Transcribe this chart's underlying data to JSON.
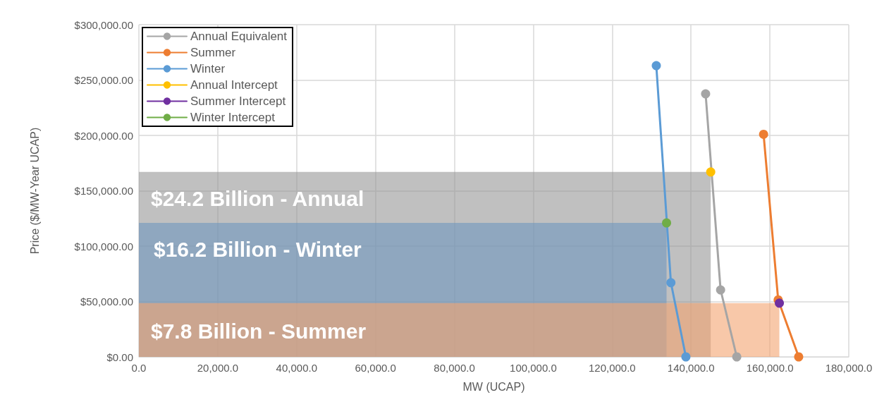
{
  "chart_data": {
    "type": "line",
    "xlabel": "MW (UCAP)",
    "ylabel": "Price ($/MW-Year UCAP)",
    "xlim": [
      0,
      180000
    ],
    "xticks": [
      {
        "value": 0,
        "label": "0.0"
      },
      {
        "value": 20000,
        "label": "20,000.0"
      },
      {
        "value": 40000,
        "label": "40,000.0"
      },
      {
        "value": 60000,
        "label": "60,000.0"
      },
      {
        "value": 80000,
        "label": "80,000.0"
      },
      {
        "value": 100000,
        "label": "100,000.0"
      },
      {
        "value": 120000,
        "label": "120,000.0"
      },
      {
        "value": 140000,
        "label": "140,000.0"
      },
      {
        "value": 160000,
        "label": "160,000.0"
      },
      {
        "value": 180000,
        "label": "180,000.0"
      }
    ],
    "ylim": [
      0,
      300000
    ],
    "yticks": [
      {
        "value": 0,
        "label": "$0.00"
      },
      {
        "value": 50000,
        "label": "$50,000.00"
      },
      {
        "value": 100000,
        "label": "$100,000.00"
      },
      {
        "value": 150000,
        "label": "$150,000.00"
      },
      {
        "value": 200000,
        "label": "$200,000.00"
      },
      {
        "value": 250000,
        "label": "$250,000.00"
      },
      {
        "value": 300000,
        "label": "$300,000.00"
      }
    ],
    "series": [
      {
        "type": "area",
        "color": "#969696",
        "marker": "none",
        "x": [
          0,
          145000
        ],
        "values": [
          167000,
          167000
        ]
      },
      {
        "type": "area",
        "color": "#6e96be",
        "marker": "none",
        "x": [
          0,
          133800
        ],
        "values": [
          121000,
          121000
        ]
      },
      {
        "type": "area",
        "color": "#f4a470",
        "marker": "none",
        "x": [
          0,
          162400
        ],
        "values": [
          48500,
          48500
        ]
      },
      {
        "name": "Annual Equivalent",
        "color": "#a5a5a5",
        "x": [
          143700,
          147500,
          151600
        ],
        "values": [
          237500,
          60500,
          0
        ]
      },
      {
        "name": "Summer",
        "color": "#ed7d31",
        "x": [
          158400,
          162100,
          167300
        ],
        "values": [
          201000,
          51500,
          0
        ]
      },
      {
        "name": "Winter",
        "color": "#5b9bd5",
        "x": [
          131200,
          134900,
          138700
        ],
        "values": [
          263000,
          67000,
          0
        ]
      },
      {
        "name": "Annual Intercept",
        "color": "#ffc000",
        "x": [
          145000
        ],
        "values": [
          167000
        ]
      },
      {
        "name": "Summer Intercept",
        "color": "#7030a0",
        "x": [
          162400
        ],
        "values": [
          48500
        ]
      },
      {
        "name": "Winter Intercept",
        "color": "#70ad47",
        "x": [
          133800
        ],
        "values": [
          121000
        ]
      }
    ],
    "annotations": [
      "$24.2 Billion - Annual",
      "$16.2 Billion - Winter",
      "$7.8 Billion - Summer"
    ],
    "grid": true,
    "legend": "top left",
    "marker": "circle",
    "line_style": "solid"
  }
}
